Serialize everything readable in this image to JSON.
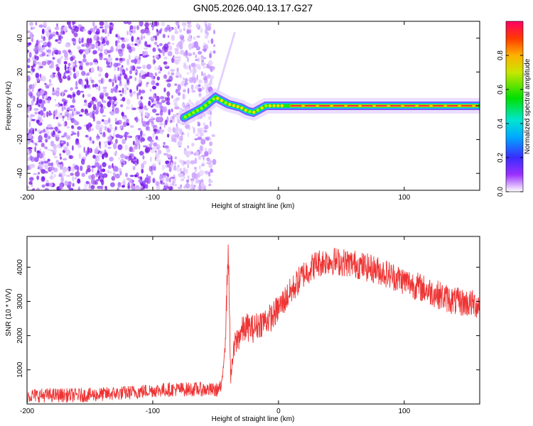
{
  "title": "GN05.2026.040.13.17.G27",
  "chart_data": [
    {
      "type": "heatmap",
      "name": "spectrogram",
      "xlabel": "Height of straight line (km)",
      "ylabel": "Frequency (Hz)",
      "xlim": [
        -200,
        160
      ],
      "ylim": [
        -50,
        50
      ],
      "xticks": [
        "-200",
        "-100",
        "0",
        "100"
      ],
      "xtick_values": [
        -200,
        -100,
        0,
        100
      ],
      "yticks": [
        "40",
        "20",
        "0",
        "-20",
        "-40"
      ],
      "ytick_values": [
        40,
        20,
        0,
        -20,
        -40
      ],
      "noise_region": [
        -200,
        -55
      ],
      "signal_track": {
        "x": [
          -75,
          -70,
          -65,
          -60,
          -55,
          -50,
          -45,
          -40,
          -35,
          -30,
          -25,
          -20,
          -15,
          -10,
          0,
          20,
          40,
          60,
          80,
          100,
          120,
          140,
          150,
          160
        ],
        "y": [
          -7,
          -5,
          -3,
          -1,
          2,
          5,
          3,
          1,
          0,
          -1,
          -3,
          -4,
          -2,
          0,
          0,
          0,
          0,
          0,
          0,
          0,
          0,
          0,
          0,
          0
        ]
      },
      "colorbar": {
        "label": "Normalized spectral amplitude",
        "range": [
          0,
          1
        ],
        "ticks": [
          "0.0",
          "0.2",
          "0.4",
          "0.6",
          "0.8"
        ],
        "tick_values": [
          0.0,
          0.2,
          0.4,
          0.6,
          0.8
        ]
      }
    },
    {
      "type": "line",
      "name": "snr",
      "xlabel": "Height of straight line (km)",
      "ylabel": "SNR (10 * V/V)",
      "xlim": [
        -200,
        160
      ],
      "ylim": [
        0,
        4900
      ],
      "xticks": [
        "-200",
        "-100",
        "0",
        "100"
      ],
      "xtick_values": [
        -200,
        -100,
        0,
        100
      ],
      "yticks": [
        "4000",
        "3000",
        "2000",
        "1000"
      ],
      "ytick_values": [
        4000,
        3000,
        2000,
        1000
      ],
      "color": "#ee3333",
      "trend": {
        "x": [
          -200,
          -150,
          -120,
          -100,
          -80,
          -60,
          -50,
          -45,
          -42,
          -40,
          -38,
          -35,
          -30,
          -25,
          -20,
          -15,
          -10,
          -5,
          0,
          10,
          20,
          30,
          40,
          60,
          80,
          100,
          120,
          140,
          160
        ],
        "y": [
          250,
          260,
          330,
          400,
          430,
          430,
          400,
          500,
          2200,
          4600,
          800,
          1700,
          2100,
          2250,
          2200,
          2350,
          2450,
          2550,
          2800,
          3300,
          3800,
          4100,
          4200,
          4100,
          3900,
          3600,
          3300,
          3000,
          2900
        ]
      },
      "noise_amplitude": 300
    }
  ]
}
